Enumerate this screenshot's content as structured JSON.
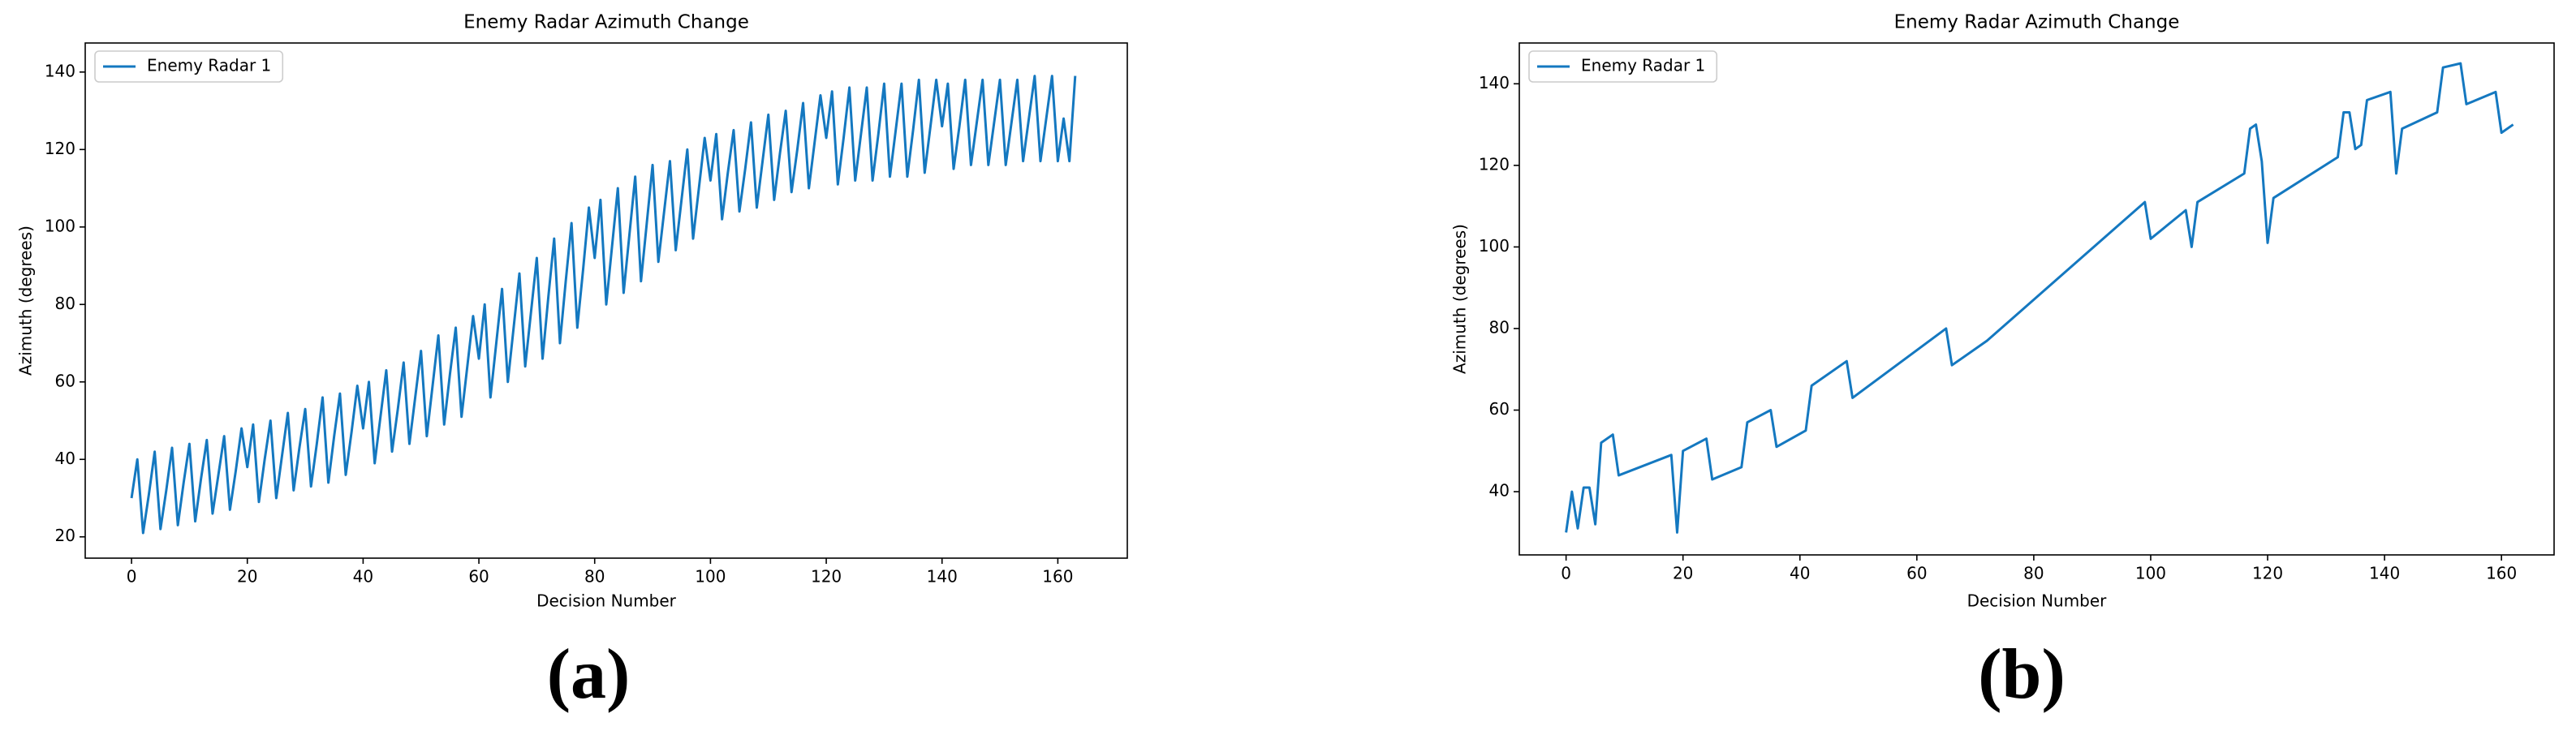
{
  "chart_data": [
    {
      "type": "line",
      "title": "Enemy Radar Azimuth Change",
      "panel_label": "(a)",
      "x_label": "Decision Number",
      "y_label": "Azimuth (degrees)",
      "xlim": [
        -8,
        172
      ],
      "ylim": [
        14.5,
        147.5
      ],
      "xticks": [
        0,
        20,
        40,
        60,
        80,
        100,
        120,
        140,
        160
      ],
      "yticks": [
        20,
        40,
        60,
        80,
        100,
        120,
        140
      ],
      "legend": "upper left",
      "x": [
        0,
        1,
        2,
        3,
        4,
        5,
        6,
        7,
        8,
        9,
        10,
        11,
        12,
        13,
        14,
        15,
        16,
        17,
        18,
        19,
        20,
        21,
        22,
        23,
        24,
        25,
        26,
        27,
        28,
        29,
        30,
        31,
        32,
        33,
        34,
        35,
        36,
        37,
        38,
        39,
        40,
        41,
        42,
        43,
        44,
        45,
        46,
        47,
        48,
        49,
        50,
        51,
        52,
        53,
        54,
        55,
        56,
        57,
        58,
        59,
        60,
        61,
        62,
        63,
        64,
        65,
        66,
        67,
        68,
        69,
        70,
        71,
        72,
        73,
        74,
        75,
        76,
        77,
        78,
        79,
        80,
        81,
        82,
        83,
        84,
        85,
        86,
        87,
        88,
        89,
        90,
        91,
        92,
        93,
        94,
        95,
        96,
        97,
        98,
        99,
        100,
        101,
        102,
        103,
        104,
        105,
        106,
        107,
        108,
        109,
        110,
        111,
        112,
        113,
        114,
        115,
        116,
        117,
        118,
        119,
        120,
        121,
        122,
        123,
        124,
        125,
        126,
        127,
        128,
        129,
        130,
        131,
        132,
        133,
        134,
        135,
        136,
        137,
        138,
        139,
        140,
        141,
        142,
        143,
        144,
        145,
        146,
        147,
        148,
        149,
        150,
        151,
        152,
        153,
        154,
        155,
        156,
        157,
        158,
        159,
        160,
        161,
        162,
        163
      ],
      "series": [
        {
          "name": "Enemy Radar 1",
          "color": "#1478c0",
          "values": [
            30,
            40,
            21,
            31,
            42,
            22,
            32,
            43,
            23,
            34,
            44,
            24,
            35,
            45,
            26,
            36,
            46,
            27,
            37,
            48,
            38,
            49,
            29,
            40,
            50,
            30,
            41,
            52,
            32,
            43,
            53,
            33,
            44,
            56,
            34,
            46,
            57,
            36,
            47,
            59,
            48,
            60,
            39,
            51,
            63,
            42,
            53,
            65,
            44,
            56,
            68,
            46,
            59,
            72,
            49,
            62,
            74,
            51,
            64,
            77,
            66,
            80,
            56,
            70,
            84,
            60,
            74,
            88,
            64,
            78,
            92,
            66,
            82,
            97,
            70,
            86,
            101,
            74,
            89,
            105,
            92,
            107,
            80,
            95,
            110,
            83,
            98,
            113,
            86,
            101,
            116,
            91,
            104,
            117,
            94,
            107,
            120,
            97,
            110,
            123,
            112,
            124,
            102,
            114,
            125,
            104,
            115,
            127,
            105,
            117,
            129,
            107,
            119,
            130,
            109,
            120,
            132,
            110,
            122,
            134,
            123,
            135,
            111,
            123,
            136,
            112,
            124,
            136,
            112,
            124,
            137,
            113,
            125,
            137,
            113,
            125,
            138,
            114,
            126,
            138,
            126,
            137,
            115,
            126,
            138,
            116,
            127,
            138,
            116,
            127,
            138,
            116,
            127,
            138,
            117,
            128,
            139,
            117,
            128,
            139,
            117,
            128,
            117,
            139
          ]
        }
      ]
    },
    {
      "type": "line",
      "title": "Enemy Radar Azimuth Change",
      "panel_label": "(b)",
      "x_label": "Decision Number",
      "y_label": "Azimuth (degrees)",
      "xlim": [
        -8,
        169
      ],
      "ylim": [
        24.5,
        150
      ],
      "xticks": [
        0,
        20,
        40,
        60,
        80,
        100,
        120,
        140,
        160
      ],
      "yticks": [
        40,
        60,
        80,
        100,
        120,
        140
      ],
      "legend": "upper left",
      "x": [
        0,
        1,
        2,
        3,
        4,
        5,
        6,
        8,
        9,
        18,
        19,
        20,
        24,
        25,
        30,
        31,
        35,
        36,
        41,
        42,
        48,
        49,
        65,
        66,
        72,
        99,
        100,
        106,
        107,
        108,
        116,
        117,
        118,
        119,
        120,
        121,
        132,
        133,
        134,
        135,
        136,
        137,
        141,
        142,
        143,
        149,
        150,
        153,
        154,
        159,
        160,
        162
      ],
      "series": [
        {
          "name": "Enemy Radar 1",
          "color": "#1478c0",
          "values": [
            30,
            40,
            31,
            41,
            41,
            32,
            52,
            54,
            44,
            49,
            30,
            50,
            53,
            43,
            46,
            57,
            60,
            51,
            55,
            66,
            72,
            63,
            80,
            71,
            77,
            111,
            102,
            109,
            100,
            111,
            118,
            129,
            130,
            121,
            101,
            112,
            122,
            133,
            133,
            124,
            125,
            136,
            138,
            118,
            129,
            133,
            144,
            145,
            135,
            138,
            128,
            130
          ]
        }
      ]
    }
  ]
}
